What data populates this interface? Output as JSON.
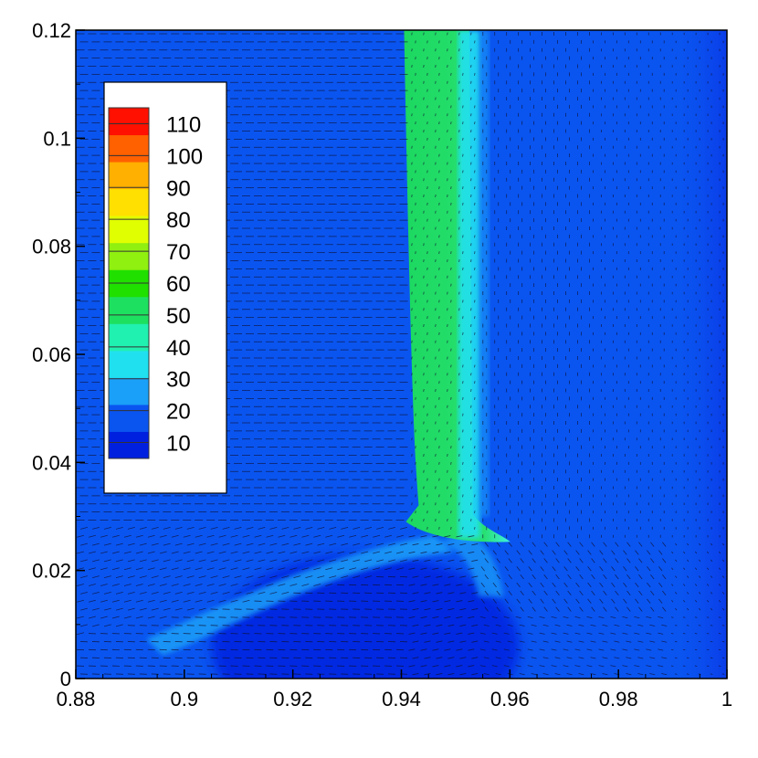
{
  "chart_data": {
    "type": "heatmap",
    "subtype": "contour-with-vector-field",
    "title": "",
    "xlabel": "",
    "ylabel": "",
    "xlim": [
      0.88,
      1.0
    ],
    "ylim": [
      0,
      0.12
    ],
    "x_ticks": [
      {
        "value": 0.88,
        "label": "0.88"
      },
      {
        "value": 0.9,
        "label": "0.9"
      },
      {
        "value": 0.92,
        "label": "0.92"
      },
      {
        "value": 0.94,
        "label": "0.94"
      },
      {
        "value": 0.96,
        "label": "0.96"
      },
      {
        "value": 0.98,
        "label": "0.98"
      },
      {
        "value": 1.0,
        "label": "1"
      }
    ],
    "y_ticks": [
      {
        "value": 0,
        "label": "0"
      },
      {
        "value": 0.02,
        "label": "0.02"
      },
      {
        "value": 0.04,
        "label": "0.04"
      },
      {
        "value": 0.06,
        "label": "0.06"
      },
      {
        "value": 0.08,
        "label": "0.08"
      },
      {
        "value": 0.1,
        "label": "0.1"
      },
      {
        "value": 0.12,
        "label": "0.12"
      }
    ],
    "colorbar": {
      "placement": "top-left",
      "min": 5,
      "max": 115,
      "levels": [
        10,
        20,
        30,
        40,
        50,
        60,
        70,
        80,
        90,
        100,
        110
      ],
      "labels": [
        "110",
        "100",
        "90",
        "80",
        "70",
        "60",
        "50",
        "40",
        "30",
        "20",
        "10"
      ],
      "colors": [
        "#0020e0",
        "#0a55f0",
        "#1aa0f8",
        "#20e0f0",
        "#20f0b0",
        "#1ee060",
        "#20e000",
        "#90f010",
        "#e0ff00",
        "#ffe000",
        "#ffb000",
        "#ff6000",
        "#ff1000"
      ]
    },
    "field": {
      "background_value": 14,
      "regions": [
        {
          "name": "green-jet",
          "x": [
            0.9405,
            0.9525
          ],
          "y": [
            0.027,
            0.12
          ],
          "value": 58
        },
        {
          "name": "cyan-edge",
          "x": [
            0.9505,
            0.9545
          ],
          "y": [
            0.026,
            0.12
          ],
          "value": 35
        },
        {
          "name": "right-band",
          "x": [
            0.989,
            1.0
          ],
          "y": [
            0,
            0.12
          ],
          "value": 11
        },
        {
          "name": "recirculation",
          "x": [
            0.905,
            0.955
          ],
          "y": [
            0,
            0.02
          ],
          "value": 7
        }
      ],
      "shear_layer": {
        "from": [
          0.893,
          0.008
        ],
        "to": [
          0.946,
          0.0265
        ],
        "value": 30
      }
    },
    "grid": false
  }
}
